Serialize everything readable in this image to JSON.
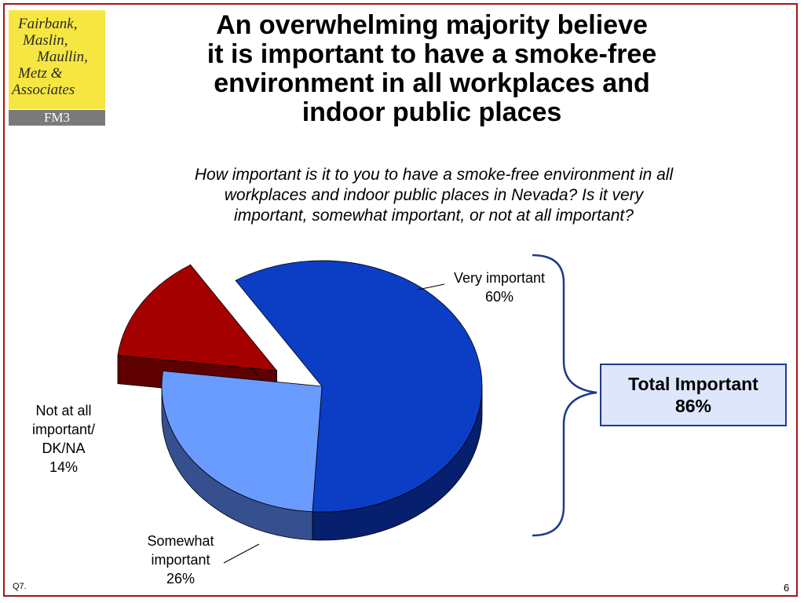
{
  "logo": {
    "lines": [
      "Fairbank,",
      "Maslin,",
      "Maullin,",
      "Metz &",
      "Associates"
    ],
    "bar_text": "FM3"
  },
  "title_lines": [
    "An overwhelming majority believe",
    "it is important to have a smoke-free",
    "environment in all workplaces and",
    "indoor public places"
  ],
  "subtitle_lines": [
    "How important is it to you to have a smoke-free environment in all",
    "workplaces and indoor public places in Nevada? Is it very",
    "important, somewhat important, or not at all important?"
  ],
  "chart_data": {
    "type": "pie",
    "title": "",
    "slices": [
      {
        "label_lines": [
          "Very important"
        ],
        "value": 60,
        "value_label": "60%",
        "color": "#0b3ec4",
        "side_color": "#061f6e"
      },
      {
        "label_lines": [
          "Somewhat",
          "important"
        ],
        "value": 26,
        "value_label": "26%",
        "color": "#6a9bff",
        "side_color": "#354f8f"
      },
      {
        "label_lines": [
          "Not at all",
          "important/",
          "DK/NA"
        ],
        "value": 14,
        "value_label": "14%",
        "color": "#a50000",
        "side_color": "#5e0000",
        "exploded": true
      }
    ],
    "style": "3d-exploded"
  },
  "total_box": {
    "label": "Total Important",
    "value": "86%"
  },
  "footnote": "Q7.",
  "page_number": "6",
  "colors": {
    "frame": "#a01818",
    "brace": "#1f3a8a",
    "box_fill": "#dde6fb",
    "logo_yellow": "#f5e642",
    "logo_gray": "#7a7a7a"
  }
}
